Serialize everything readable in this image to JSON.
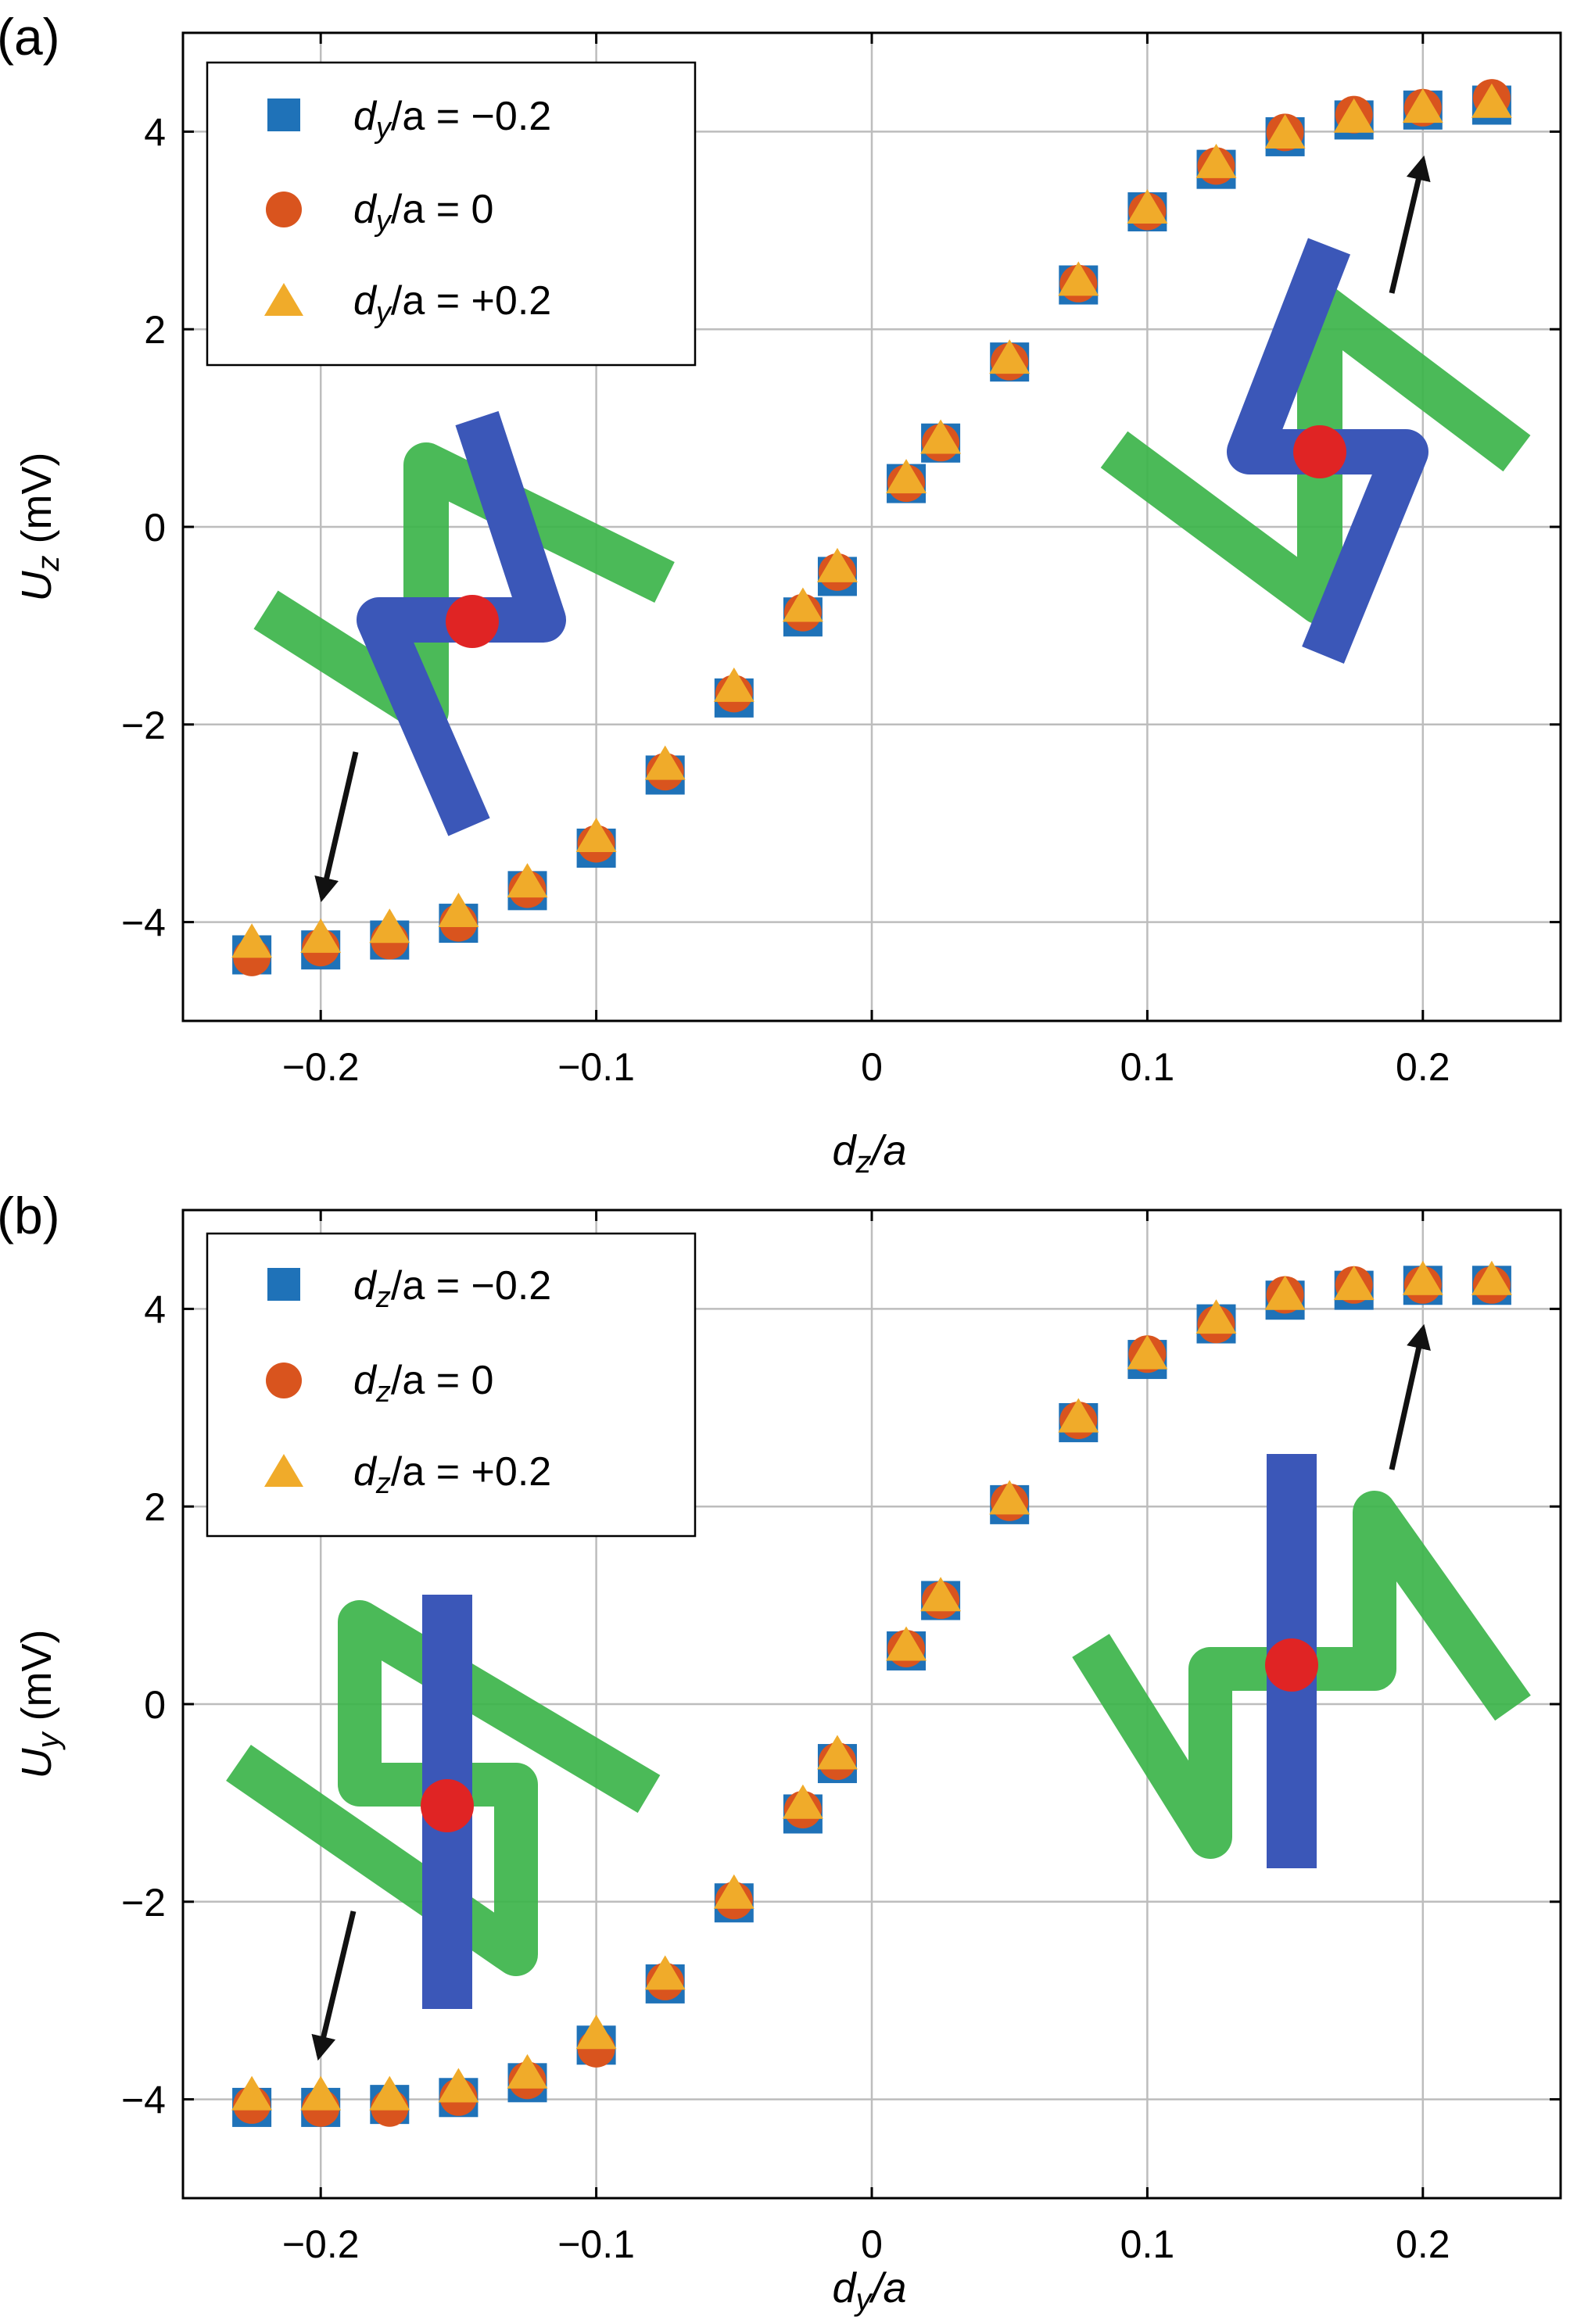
{
  "colors": {
    "series_neg": "#1f72b8",
    "series_zero": "#d9541e",
    "series_pos": "#f0ab2a",
    "grid": "#bdbdbd",
    "rod_blue": "#3b57b8",
    "rod_green": "#3cb44a",
    "dot_red": "#e02424",
    "arrow": "#111111"
  },
  "chart_data": [
    {
      "type": "scatter",
      "panel_label": "(a)",
      "xlabel": {
        "var": "d",
        "sub": "z",
        "rest": "/a"
      },
      "ylabel": {
        "var": "U",
        "sub": "z",
        "rest": " (mV)"
      },
      "xlim": [
        -0.25,
        0.25
      ],
      "ylim": [
        -5,
        5
      ],
      "xticks": [
        -0.2,
        -0.1,
        0,
        0.1,
        0.2
      ],
      "xtick_labels": [
        "−0.2",
        "−0.1",
        "0",
        "0.1",
        "0.2"
      ],
      "yticks": [
        -4,
        -2,
        0,
        2,
        4
      ],
      "ytick_labels": [
        "−4",
        "−2",
        "0",
        "2",
        "4"
      ],
      "grid": true,
      "legend_position": "top-left",
      "x": [
        -0.225,
        -0.2,
        -0.175,
        -0.15,
        -0.125,
        -0.1,
        -0.075,
        -0.05,
        -0.025,
        -0.0125,
        0.0125,
        0.025,
        0.05,
        0.075,
        0.1,
        0.125,
        0.15,
        0.175,
        0.2,
        0.225
      ],
      "series": [
        {
          "name": "dy/a = −0.2",
          "legend": {
            "var": "d",
            "sub": "y",
            "rest": "/a = −0.2"
          },
          "marker": "square",
          "color": "#1f72b8",
          "dy": 4,
          "values": [
            -4.3,
            -4.25,
            -4.15,
            -3.98,
            -3.65,
            -3.22,
            -2.48,
            -1.7,
            -0.88,
            -0.47,
            0.47,
            0.88,
            1.7,
            2.48,
            3.22,
            3.65,
            3.98,
            4.15,
            4.25,
            4.3
          ]
        },
        {
          "name": "dy/a = 0",
          "legend": {
            "var": "d",
            "sub": "y",
            "rest": "/a = 0"
          },
          "marker": "circle",
          "color": "#d9541e",
          "dy": 1,
          "values": [
            -4.35,
            -4.25,
            -4.18,
            -4.0,
            -3.66,
            -3.2,
            -2.47,
            -1.68,
            -0.86,
            -0.45,
            0.45,
            0.86,
            1.68,
            2.47,
            3.2,
            3.66,
            4.0,
            4.18,
            4.25,
            4.35
          ]
        },
        {
          "name": "dy/a = +0.2",
          "legend": {
            "var": "d",
            "sub": "y",
            "rest": "/a = +0.2"
          },
          "marker": "triangle",
          "color": "#f0ab2a",
          "dy": -4,
          "values": [
            -4.25,
            -4.2,
            -4.1,
            -3.94,
            -3.64,
            -3.18,
            -2.45,
            -1.66,
            -0.85,
            -0.45,
            0.45,
            0.85,
            1.66,
            2.45,
            3.18,
            3.64,
            3.94,
            4.1,
            4.2,
            4.25
          ]
        }
      ],
      "annotations": [
        "arrow to (-0.2, -4.2)",
        "arrow to (0.2, 4.2)",
        "wire-rod inset left",
        "wire-rod inset right"
      ]
    },
    {
      "type": "scatter",
      "panel_label": "(b)",
      "xlabel": {
        "var": "d",
        "sub": "y",
        "rest": "/a"
      },
      "ylabel": {
        "var": "U",
        "sub": "y",
        "rest": " (mV)"
      },
      "xlim": [
        -0.25,
        0.25
      ],
      "ylim": [
        -5,
        5
      ],
      "xticks": [
        -0.2,
        -0.1,
        0,
        0.1,
        0.2
      ],
      "xtick_labels": [
        "−0.2",
        "−0.1",
        "0",
        "0.1",
        "0.2"
      ],
      "yticks": [
        -4,
        -2,
        0,
        2,
        4
      ],
      "ytick_labels": [
        "−4",
        "−2",
        "0",
        "2",
        "4"
      ],
      "grid": true,
      "legend_position": "top-left",
      "x": [
        -0.225,
        -0.2,
        -0.175,
        -0.15,
        -0.125,
        -0.1,
        -0.075,
        -0.05,
        -0.025,
        -0.0125,
        0.0125,
        0.025,
        0.05,
        0.075,
        0.1,
        0.125,
        0.15,
        0.175,
        0.2,
        0.225
      ],
      "series": [
        {
          "name": "dz/a = −0.2",
          "legend": {
            "var": "d",
            "sub": "z",
            "rest": "/a = −0.2"
          },
          "marker": "square",
          "color": "#1f72b8",
          "dy": 4,
          "values": [
            -4.05,
            -4.05,
            -4.02,
            -3.95,
            -3.8,
            -3.42,
            -2.8,
            -1.98,
            -1.08,
            -0.57,
            0.57,
            1.08,
            2.05,
            2.88,
            3.52,
            3.88,
            4.12,
            4.22,
            4.27,
            4.27
          ]
        },
        {
          "name": "dz/a = 0",
          "legend": {
            "var": "d",
            "sub": "z",
            "rest": "/a = 0"
          },
          "marker": "circle",
          "color": "#d9541e",
          "dy": 1,
          "values": [
            -4.05,
            -4.08,
            -4.08,
            -3.97,
            -3.8,
            -3.48,
            -2.8,
            -1.98,
            -1.06,
            -0.57,
            0.57,
            1.06,
            2.05,
            2.88,
            3.55,
            3.85,
            4.15,
            4.25,
            4.25,
            4.25
          ]
        },
        {
          "name": "dz/a = +0.2",
          "legend": {
            "var": "d",
            "sub": "z",
            "rest": "/a = +0.2"
          },
          "marker": "triangle",
          "color": "#f0ab2a",
          "dy": -4,
          "values": [
            -4.0,
            -4.0,
            -4.0,
            -3.92,
            -3.78,
            -3.38,
            -2.78,
            -1.96,
            -1.05,
            -0.55,
            0.55,
            1.05,
            2.03,
            2.86,
            3.5,
            3.86,
            4.1,
            4.2,
            4.25,
            4.25
          ]
        }
      ],
      "annotations": [
        "arrow to (-0.2, -4.0)",
        "arrow to (0.2, 4.2)",
        "wire-rod inset left",
        "wire-rod inset right"
      ]
    }
  ]
}
